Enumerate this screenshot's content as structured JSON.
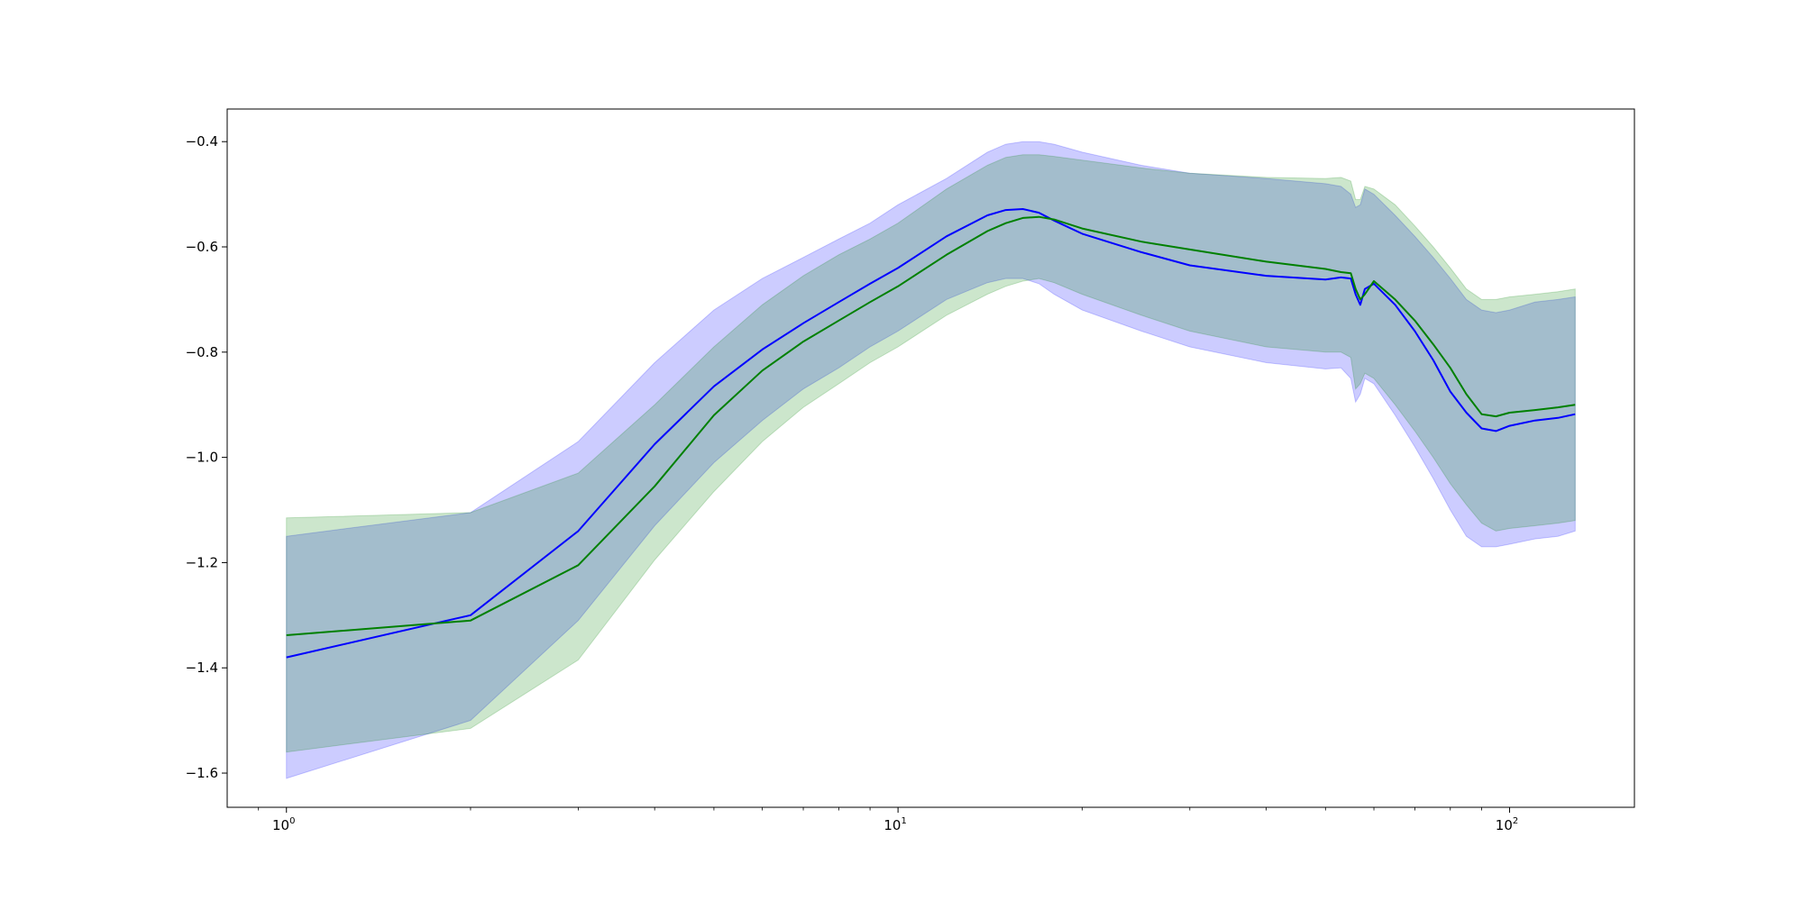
{
  "chart_data": {
    "type": "line",
    "title": "",
    "xlabel": "",
    "ylabel": "",
    "x_scale": "log",
    "xlim": [
      0.8,
      160
    ],
    "ylim": [
      -1.665,
      -0.338
    ],
    "grid": false,
    "x_ticks": [
      {
        "value": 1,
        "base": "10",
        "exp": "0"
      },
      {
        "value": 10,
        "base": "10",
        "exp": "1"
      },
      {
        "value": 100,
        "base": "10",
        "exp": "2"
      }
    ],
    "y_ticks": [
      {
        "value": -0.4,
        "label": "−0.4"
      },
      {
        "value": -0.6,
        "label": "−0.6"
      },
      {
        "value": -0.8,
        "label": "−0.8"
      },
      {
        "value": -1.0,
        "label": "−1.0"
      },
      {
        "value": -1.2,
        "label": "−1.2"
      },
      {
        "value": -1.4,
        "label": "−1.4"
      },
      {
        "value": -1.6,
        "label": "−1.6"
      }
    ],
    "x": [
      1,
      2,
      3,
      4,
      5,
      6,
      7,
      8,
      9,
      10,
      12,
      14,
      15,
      16,
      17,
      18,
      20,
      25,
      30,
      40,
      50,
      53,
      55,
      56,
      57,
      58,
      60,
      65,
      70,
      75,
      80,
      85,
      90,
      95,
      100,
      110,
      120,
      128
    ],
    "series": [
      {
        "color": "#0000ff",
        "band_color": "#0000ff",
        "band_opacity": 0.2,
        "mean": [
          -1.38,
          -1.3,
          -1.14,
          -0.975,
          -0.865,
          -0.795,
          -0.745,
          -0.705,
          -0.67,
          -0.64,
          -0.58,
          -0.54,
          -0.53,
          -0.528,
          -0.535,
          -0.55,
          -0.575,
          -0.61,
          -0.635,
          -0.655,
          -0.662,
          -0.658,
          -0.66,
          -0.69,
          -0.71,
          -0.68,
          -0.67,
          -0.71,
          -0.76,
          -0.815,
          -0.875,
          -0.915,
          -0.945,
          -0.95,
          -0.94,
          -0.93,
          -0.925,
          -0.918
        ],
        "lower": [
          -1.61,
          -1.5,
          -1.31,
          -1.13,
          -1.01,
          -0.93,
          -0.87,
          -0.83,
          -0.79,
          -0.76,
          -0.7,
          -0.668,
          -0.66,
          -0.66,
          -0.67,
          -0.69,
          -0.72,
          -0.76,
          -0.79,
          -0.82,
          -0.832,
          -0.83,
          -0.85,
          -0.895,
          -0.88,
          -0.85,
          -0.86,
          -0.92,
          -0.98,
          -1.04,
          -1.1,
          -1.15,
          -1.17,
          -1.17,
          -1.165,
          -1.155,
          -1.15,
          -1.14
        ],
        "upper": [
          -1.15,
          -1.105,
          -0.97,
          -0.82,
          -0.72,
          -0.66,
          -0.62,
          -0.585,
          -0.555,
          -0.52,
          -0.47,
          -0.42,
          -0.405,
          -0.4,
          -0.4,
          -0.405,
          -0.42,
          -0.445,
          -0.46,
          -0.47,
          -0.48,
          -0.485,
          -0.5,
          -0.525,
          -0.52,
          -0.49,
          -0.5,
          -0.54,
          -0.58,
          -0.62,
          -0.66,
          -0.7,
          -0.72,
          -0.725,
          -0.72,
          -0.705,
          -0.7,
          -0.695
        ]
      },
      {
        "color": "#008000",
        "band_color": "#008000",
        "band_opacity": 0.2,
        "mean": [
          -1.338,
          -1.31,
          -1.205,
          -1.055,
          -0.92,
          -0.835,
          -0.78,
          -0.74,
          -0.705,
          -0.675,
          -0.615,
          -0.57,
          -0.555,
          -0.545,
          -0.543,
          -0.548,
          -0.565,
          -0.59,
          -0.605,
          -0.628,
          -0.642,
          -0.648,
          -0.65,
          -0.68,
          -0.7,
          -0.69,
          -0.665,
          -0.7,
          -0.74,
          -0.785,
          -0.83,
          -0.88,
          -0.918,
          -0.922,
          -0.915,
          -0.91,
          -0.905,
          -0.9
        ],
        "lower": [
          -1.56,
          -1.515,
          -1.385,
          -1.195,
          -1.065,
          -0.97,
          -0.905,
          -0.86,
          -0.82,
          -0.79,
          -0.73,
          -0.69,
          -0.675,
          -0.665,
          -0.66,
          -0.668,
          -0.69,
          -0.73,
          -0.76,
          -0.79,
          -0.8,
          -0.8,
          -0.81,
          -0.87,
          -0.86,
          -0.84,
          -0.85,
          -0.9,
          -0.95,
          -1.0,
          -1.05,
          -1.09,
          -1.125,
          -1.14,
          -1.135,
          -1.13,
          -1.125,
          -1.12
        ],
        "upper": [
          -1.115,
          -1.105,
          -1.03,
          -0.9,
          -0.79,
          -0.71,
          -0.655,
          -0.615,
          -0.585,
          -0.555,
          -0.49,
          -0.445,
          -0.43,
          -0.425,
          -0.425,
          -0.428,
          -0.435,
          -0.45,
          -0.46,
          -0.468,
          -0.47,
          -0.468,
          -0.475,
          -0.51,
          -0.51,
          -0.485,
          -0.49,
          -0.52,
          -0.56,
          -0.6,
          -0.64,
          -0.68,
          -0.7,
          -0.7,
          -0.695,
          -0.69,
          -0.685,
          -0.68
        ]
      }
    ]
  }
}
